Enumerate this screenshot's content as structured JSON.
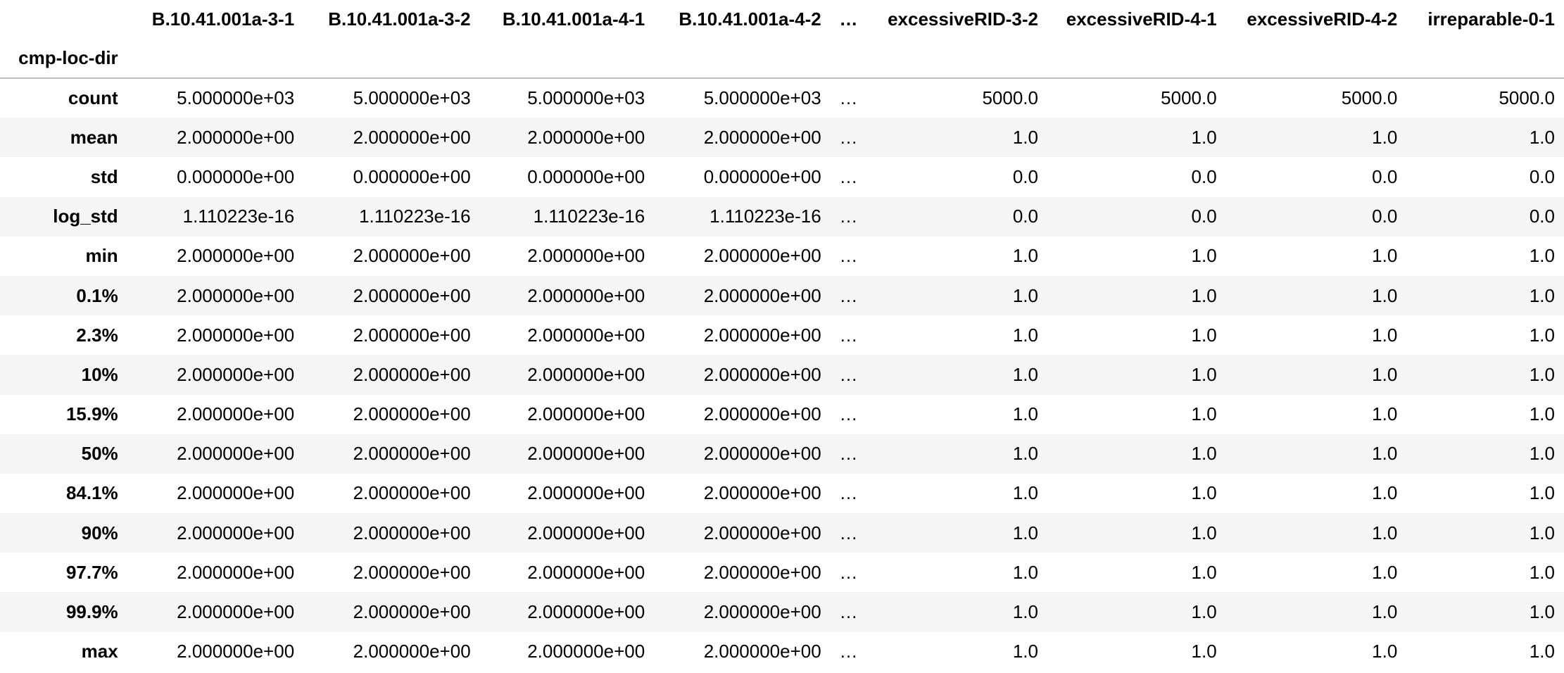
{
  "table": {
    "index_name": "cmp-loc-dir",
    "columns": [
      "B.10.41.001a-3-1",
      "B.10.41.001a-3-2",
      "B.10.41.001a-4-1",
      "B.10.41.001a-4-2",
      "…",
      "excessiveRID-3-2",
      "excessiveRID-4-1",
      "excessiveRID-4-2",
      "irreparable-0-1"
    ],
    "rows": [
      {
        "label": "count",
        "values": [
          "5.000000e+03",
          "5.000000e+03",
          "5.000000e+03",
          "5.000000e+03",
          "…",
          "5000.0",
          "5000.0",
          "5000.0",
          "5000.0"
        ]
      },
      {
        "label": "mean",
        "values": [
          "2.000000e+00",
          "2.000000e+00",
          "2.000000e+00",
          "2.000000e+00",
          "…",
          "1.0",
          "1.0",
          "1.0",
          "1.0"
        ]
      },
      {
        "label": "std",
        "values": [
          "0.000000e+00",
          "0.000000e+00",
          "0.000000e+00",
          "0.000000e+00",
          "…",
          "0.0",
          "0.0",
          "0.0",
          "0.0"
        ]
      },
      {
        "label": "log_std",
        "values": [
          "1.110223e-16",
          "1.110223e-16",
          "1.110223e-16",
          "1.110223e-16",
          "…",
          "0.0",
          "0.0",
          "0.0",
          "0.0"
        ]
      },
      {
        "label": "min",
        "values": [
          "2.000000e+00",
          "2.000000e+00",
          "2.000000e+00",
          "2.000000e+00",
          "…",
          "1.0",
          "1.0",
          "1.0",
          "1.0"
        ]
      },
      {
        "label": "0.1%",
        "values": [
          "2.000000e+00",
          "2.000000e+00",
          "2.000000e+00",
          "2.000000e+00",
          "…",
          "1.0",
          "1.0",
          "1.0",
          "1.0"
        ]
      },
      {
        "label": "2.3%",
        "values": [
          "2.000000e+00",
          "2.000000e+00",
          "2.000000e+00",
          "2.000000e+00",
          "…",
          "1.0",
          "1.0",
          "1.0",
          "1.0"
        ]
      },
      {
        "label": "10%",
        "values": [
          "2.000000e+00",
          "2.000000e+00",
          "2.000000e+00",
          "2.000000e+00",
          "…",
          "1.0",
          "1.0",
          "1.0",
          "1.0"
        ]
      },
      {
        "label": "15.9%",
        "values": [
          "2.000000e+00",
          "2.000000e+00",
          "2.000000e+00",
          "2.000000e+00",
          "…",
          "1.0",
          "1.0",
          "1.0",
          "1.0"
        ]
      },
      {
        "label": "50%",
        "values": [
          "2.000000e+00",
          "2.000000e+00",
          "2.000000e+00",
          "2.000000e+00",
          "…",
          "1.0",
          "1.0",
          "1.0",
          "1.0"
        ]
      },
      {
        "label": "84.1%",
        "values": [
          "2.000000e+00",
          "2.000000e+00",
          "2.000000e+00",
          "2.000000e+00",
          "…",
          "1.0",
          "1.0",
          "1.0",
          "1.0"
        ]
      },
      {
        "label": "90%",
        "values": [
          "2.000000e+00",
          "2.000000e+00",
          "2.000000e+00",
          "2.000000e+00",
          "…",
          "1.0",
          "1.0",
          "1.0",
          "1.0"
        ]
      },
      {
        "label": "97.7%",
        "values": [
          "2.000000e+00",
          "2.000000e+00",
          "2.000000e+00",
          "2.000000e+00",
          "…",
          "1.0",
          "1.0",
          "1.0",
          "1.0"
        ]
      },
      {
        "label": "99.9%",
        "values": [
          "2.000000e+00",
          "2.000000e+00",
          "2.000000e+00",
          "2.000000e+00",
          "…",
          "1.0",
          "1.0",
          "1.0",
          "1.0"
        ]
      },
      {
        "label": "max",
        "values": [
          "2.000000e+00",
          "2.000000e+00",
          "2.000000e+00",
          "2.000000e+00",
          "…",
          "1.0",
          "1.0",
          "1.0",
          "1.0"
        ]
      }
    ]
  }
}
